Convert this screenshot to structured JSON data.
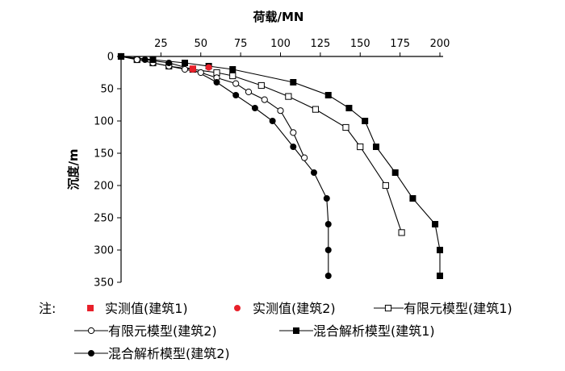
{
  "chart_data": {
    "type": "line",
    "title": "",
    "xlabel": "荷载/MN",
    "ylabel": "沉度/m",
    "xlim": [
      0,
      200
    ],
    "ylim": [
      0,
      350
    ],
    "x_axis_position": "top",
    "y_inverted": true,
    "xticks": [
      25,
      50,
      75,
      100,
      125,
      150,
      175,
      200
    ],
    "yticks": [
      0,
      50,
      100,
      150,
      200,
      250,
      300,
      350
    ],
    "grid": false,
    "legend_position": "bottom",
    "legend_prefix": "注:",
    "series": [
      {
        "name": "实测值(建筑1)",
        "color": "#e8202a",
        "marker": "square-filled",
        "line": false,
        "points": [
          [
            45,
            19
          ]
        ]
      },
      {
        "name": "实测值(建筑2)",
        "color": "#e8202a",
        "marker": "circle-filled",
        "line": false,
        "points": [
          [
            45,
            20
          ],
          [
            55,
            17
          ]
        ]
      },
      {
        "name": "有限元模型(建筑1)",
        "color": "#000000",
        "marker": "square-open",
        "line": true,
        "points": [
          [
            0,
            0
          ],
          [
            10,
            5
          ],
          [
            20,
            10
          ],
          [
            30,
            15
          ],
          [
            45,
            20
          ],
          [
            60,
            25
          ],
          [
            70,
            30
          ],
          [
            88,
            45
          ],
          [
            105,
            62
          ],
          [
            122,
            82
          ],
          [
            141,
            110
          ],
          [
            150,
            140
          ],
          [
            166,
            200
          ],
          [
            176,
            273
          ]
        ]
      },
      {
        "name": "有限元模型(建筑2)",
        "color": "#000000",
        "marker": "circle-open",
        "line": true,
        "points": [
          [
            0,
            0
          ],
          [
            10,
            5
          ],
          [
            20,
            10
          ],
          [
            30,
            15
          ],
          [
            40,
            20
          ],
          [
            50,
            25
          ],
          [
            60,
            33
          ],
          [
            72,
            42
          ],
          [
            80,
            55
          ],
          [
            90,
            67
          ],
          [
            100,
            84
          ],
          [
            108,
            118
          ],
          [
            115,
            157
          ]
        ]
      },
      {
        "name": "混合解析模型(建筑1)",
        "color": "#000000",
        "marker": "square-filled",
        "line": true,
        "points": [
          [
            0,
            0
          ],
          [
            20,
            5
          ],
          [
            40,
            10
          ],
          [
            55,
            15
          ],
          [
            70,
            20
          ],
          [
            108,
            40
          ],
          [
            130,
            60
          ],
          [
            143,
            80
          ],
          [
            153,
            100
          ],
          [
            160,
            140
          ],
          [
            172,
            180
          ],
          [
            183,
            220
          ],
          [
            197,
            260
          ],
          [
            200,
            300
          ],
          [
            200,
            340
          ]
        ]
      },
      {
        "name": "混合解析模型(建筑2)",
        "color": "#000000",
        "marker": "circle-filled",
        "line": true,
        "points": [
          [
            0,
            0
          ],
          [
            15,
            5
          ],
          [
            30,
            10
          ],
          [
            45,
            20
          ],
          [
            60,
            40
          ],
          [
            72,
            60
          ],
          [
            84,
            80
          ],
          [
            95,
            100
          ],
          [
            108,
            140
          ],
          [
            121,
            180
          ],
          [
            129,
            220
          ],
          [
            130,
            260
          ],
          [
            130,
            300
          ],
          [
            130,
            340
          ]
        ]
      }
    ]
  }
}
